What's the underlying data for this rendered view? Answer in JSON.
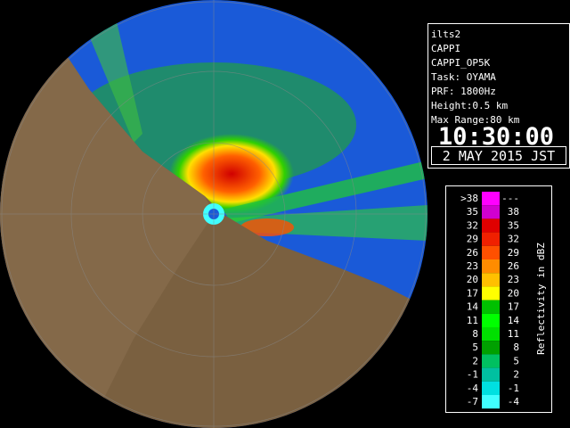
{
  "info": {
    "lines": [
      "ilts2",
      "CAPPI",
      "CAPPI_OP5K",
      "Task: OYAMA",
      "PRF: 1800Hz",
      "Height:0.5 km",
      "Max Range:80 km"
    ],
    "time": "10:30:00",
    "date": "2 MAY 2015 JST"
  },
  "legend": {
    "title": "Reflectivity in dBZ",
    "rows": [
      {
        "low": ">38",
        "high": "---",
        "color": "#ff00ff"
      },
      {
        "low": "35",
        "high": "38",
        "color": "#d000d0"
      },
      {
        "low": "32",
        "high": "35",
        "color": "#e00000"
      },
      {
        "low": "29",
        "high": "32",
        "color": "#f02000"
      },
      {
        "low": "26",
        "high": "29",
        "color": "#ff5000"
      },
      {
        "low": "23",
        "high": "26",
        "color": "#ff8c00"
      },
      {
        "low": "20",
        "high": "23",
        "color": "#ffc000"
      },
      {
        "low": "17",
        "high": "20",
        "color": "#ffff00"
      },
      {
        "low": "14",
        "high": "17",
        "color": "#00c000"
      },
      {
        "low": "11",
        "high": "14",
        "color": "#00ff00"
      },
      {
        "low": "8",
        "high": "11",
        "color": "#00e000"
      },
      {
        "low": "5",
        "high": "8",
        "color": "#00a000"
      },
      {
        "low": "2",
        "high": "5",
        "color": "#00c060"
      },
      {
        "low": "-1",
        "high": "2",
        "color": "#00c0a0"
      },
      {
        "low": "-4",
        "high": "-1",
        "color": "#00e0e0"
      },
      {
        "low": "-7",
        "high": "-4",
        "color": "#40ffff"
      }
    ]
  }
}
